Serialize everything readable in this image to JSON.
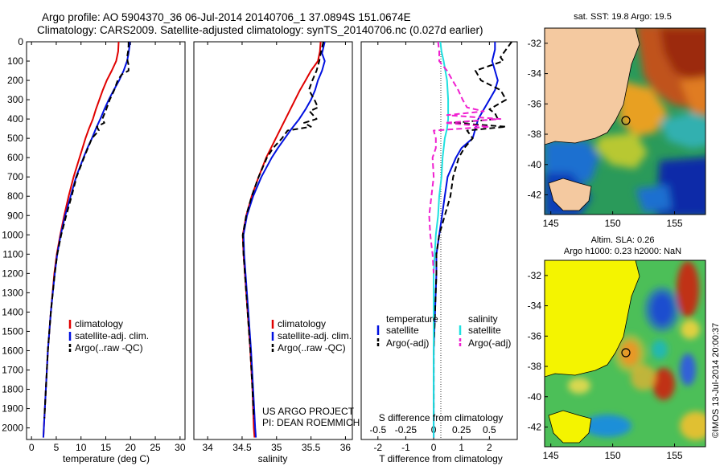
{
  "titles": {
    "line1": "Argo profile: AO 5904370_36 06-Jul-2014 20140706_1 37.0894S 151.0674E",
    "line2": "Climatology: CARS2009. Satellite-adjusted climatology: synTS_20140706.nc (0.027d earlier)"
  },
  "colors": {
    "climatology": "#e00000",
    "satellite": "#0010e0",
    "argo": "#000000",
    "salinity_satellite": "#20e0e0",
    "salinity_argo": "#f020d0",
    "land": "#f4c9a0"
  },
  "depth_axis": {
    "ticks": [
      0,
      100,
      200,
      300,
      400,
      500,
      600,
      700,
      800,
      900,
      1000,
      1100,
      1200,
      1300,
      1400,
      1500,
      1600,
      1700,
      1800,
      1900,
      2000
    ],
    "range": [
      0,
      2060
    ]
  },
  "chart_data": [
    {
      "type": "line",
      "panel": "temperature",
      "xlabel": "temperature (deg C)",
      "xlim": [
        -1,
        31
      ],
      "xticks": [
        0,
        5,
        10,
        15,
        20,
        25,
        30
      ],
      "legend": [
        "climatology",
        "satellite-adj. clim.",
        "Argo(..raw -QC)"
      ],
      "legend_position": "lower-center",
      "series": [
        {
          "name": "climatology",
          "color_key": "climatology",
          "style": "solid",
          "depth": [
            0,
            50,
            100,
            150,
            200,
            250,
            300,
            350,
            400,
            450,
            500,
            550,
            600,
            700,
            800,
            900,
            1000,
            1100,
            1200,
            1400,
            1600,
            1800,
            2000,
            2050
          ],
          "values": [
            17.6,
            17.5,
            17.1,
            16.2,
            15.2,
            14.4,
            13.7,
            13.0,
            12.4,
            11.6,
            10.9,
            10.3,
            9.7,
            8.5,
            7.5,
            6.6,
            5.8,
            5.1,
            4.6,
            3.9,
            3.3,
            2.9,
            2.5,
            2.4
          ]
        },
        {
          "name": "satellite-adj. clim.",
          "color_key": "satellite",
          "style": "solid",
          "depth": [
            0,
            20,
            60,
            100,
            150,
            200,
            250,
            300,
            350,
            400,
            450,
            500,
            550,
            600,
            700,
            800,
            900,
            1000,
            1100,
            1200,
            1400,
            1600,
            1800,
            2000,
            2050
          ],
          "values": [
            19.8,
            19.8,
            19.6,
            19.3,
            18.6,
            17.7,
            16.6,
            15.6,
            14.7,
            13.9,
            13.0,
            12.2,
            11.3,
            10.5,
            9.0,
            7.9,
            6.8,
            5.9,
            5.2,
            4.7,
            3.9,
            3.3,
            2.9,
            2.5,
            2.4
          ]
        },
        {
          "name": "Argo(..raw -QC)",
          "color_key": "argo",
          "style": "dashed",
          "depth": [
            0,
            20,
            50,
            80,
            100,
            120,
            150,
            170,
            200,
            250,
            300,
            350,
            400,
            420,
            440,
            460,
            500,
            550,
            600,
            700,
            800,
            900,
            1000,
            1100,
            1200,
            1400,
            1600,
            1800,
            1950
          ],
          "values": [
            19.6,
            19.6,
            19.5,
            19.3,
            19.4,
            19.6,
            19.6,
            18.2,
            17.4,
            16.7,
            15.8,
            15.1,
            14.3,
            14.7,
            13.2,
            13.6,
            12.2,
            11.4,
            10.6,
            9.1,
            8.1,
            7.0,
            6.0,
            5.2,
            4.7,
            3.9,
            3.3,
            2.9,
            2.6
          ]
        }
      ]
    },
    {
      "type": "line",
      "panel": "salinity",
      "xlabel": "salinity",
      "xlim": [
        33.8,
        36.1
      ],
      "xticks": [
        34,
        34.5,
        35,
        35.5,
        36
      ],
      "legend": [
        "climatology",
        "satellite-adj. clim.",
        "Argo(..raw -QC)"
      ],
      "legend_position": "lower-center",
      "series": [
        {
          "name": "climatology",
          "color_key": "climatology",
          "style": "solid",
          "depth": [
            0,
            50,
            100,
            150,
            200,
            250,
            300,
            350,
            400,
            450,
            500,
            550,
            600,
            700,
            800,
            900,
            1000,
            1100,
            1200,
            1400,
            1600,
            1800,
            2000,
            2050
          ],
          "values": [
            35.64,
            35.63,
            35.6,
            35.5,
            35.42,
            35.34,
            35.27,
            35.2,
            35.13,
            35.06,
            34.99,
            34.92,
            34.85,
            34.74,
            34.64,
            34.56,
            34.51,
            34.52,
            34.54,
            34.58,
            34.62,
            34.65,
            34.67,
            34.68
          ]
        },
        {
          "name": "satellite-adj. clim.",
          "color_key": "satellite",
          "style": "solid",
          "depth": [
            0,
            30,
            60,
            100,
            150,
            200,
            250,
            300,
            350,
            400,
            450,
            500,
            550,
            600,
            700,
            800,
            900,
            1000,
            1100,
            1200,
            1400,
            1600,
            1800,
            2000,
            2050
          ],
          "values": [
            35.7,
            35.68,
            35.66,
            35.7,
            35.66,
            35.6,
            35.56,
            35.5,
            35.42,
            35.33,
            35.22,
            35.12,
            35.02,
            34.93,
            34.78,
            34.66,
            34.57,
            34.52,
            34.53,
            34.55,
            34.59,
            34.63,
            34.66,
            34.69,
            34.7
          ]
        },
        {
          "name": "Argo(..raw -QC)",
          "color_key": "argo",
          "style": "dashed",
          "depth": [
            0,
            30,
            60,
            100,
            150,
            200,
            250,
            300,
            340,
            360,
            400,
            420,
            440,
            460,
            500,
            550,
            600,
            700,
            800,
            900,
            1000,
            1100,
            1200,
            1400,
            1600,
            1800,
            1950
          ],
          "values": [
            35.68,
            35.66,
            35.64,
            35.62,
            35.58,
            35.52,
            35.47,
            35.55,
            35.6,
            35.48,
            35.58,
            35.4,
            35.5,
            35.16,
            35.08,
            34.95,
            34.86,
            34.74,
            34.64,
            34.56,
            34.51,
            34.52,
            34.54,
            34.58,
            34.62,
            34.65,
            34.67
          ]
        }
      ]
    },
    {
      "type": "line",
      "panel": "difference",
      "xlabel": "T difference from climatology",
      "xlabel_top": "S difference from climatology",
      "xlim": [
        -2.6,
        3.0
      ],
      "xticks": [
        -2,
        -1,
        0,
        1,
        2
      ],
      "xticks_salinity": [
        -0.5,
        -0.25,
        0,
        0.25,
        0.5
      ],
      "legend_temperature": {
        "title": "temperature",
        "items": [
          "satellite",
          "Argo(-adj)"
        ]
      },
      "legend_salinity": {
        "title": "salinity",
        "items": [
          "satellite",
          "Argo(-adj)"
        ]
      },
      "series": [
        {
          "name": "temperature satellite",
          "color_key": "satellite",
          "style": "solid",
          "depth": [
            0,
            40,
            100,
            150,
            200,
            250,
            300,
            350,
            400,
            450,
            500,
            550,
            600,
            700,
            800,
            900,
            1000,
            1100,
            1200,
            1400,
            1600,
            1800,
            2000,
            2050
          ],
          "values": [
            2.2,
            2.2,
            2.1,
            2.2,
            2.3,
            2.2,
            2.0,
            1.8,
            1.6,
            1.5,
            1.4,
            1.0,
            0.8,
            0.5,
            0.4,
            0.3,
            0.2,
            0.1,
            0.1,
            0.05,
            0.0,
            0.0,
            0.0,
            0.0
          ]
        },
        {
          "name": "temperature Argo(-adj)",
          "color_key": "argo",
          "style": "dashed",
          "depth": [
            0,
            40,
            80,
            100,
            150,
            200,
            250,
            300,
            350,
            370,
            400,
            420,
            440,
            460,
            500,
            550,
            600,
            700,
            800,
            900,
            1000,
            1100,
            1200,
            1400,
            1600,
            1800,
            1950
          ],
          "values": [
            2.8,
            2.6,
            2.4,
            2.5,
            1.5,
            1.7,
            2.4,
            2.6,
            2.0,
            2.2,
            2.3,
            0.7,
            2.6,
            1.2,
            1.4,
            1.1,
            0.9,
            0.7,
            0.6,
            0.4,
            0.2,
            0.1,
            0.1,
            0.05,
            0.0,
            0.0,
            0.0
          ]
        },
        {
          "name": "salinity satellite",
          "color_key": "salinity_satellite",
          "style": "solid",
          "depth": [
            0,
            50,
            100,
            200,
            300,
            400,
            450,
            500,
            600,
            700,
            800,
            900,
            1000,
            1200,
            1400,
            1600,
            1800,
            2000,
            2050
          ],
          "values": [
            0.06,
            0.07,
            0.09,
            0.12,
            0.13,
            0.13,
            0.12,
            0.1,
            0.08,
            0.07,
            0.05,
            0.04,
            0.02,
            0.0,
            0.0,
            0.0,
            0.0,
            0.0,
            0.0
          ]
        },
        {
          "name": "salinity Argo(-adj)",
          "color_key": "salinity_argo",
          "style": "dashed",
          "depth": [
            0,
            50,
            100,
            150,
            200,
            250,
            300,
            340,
            360,
            380,
            400,
            420,
            440,
            460,
            500,
            550,
            600,
            700,
            800,
            900,
            1000,
            1100,
            1200
          ],
          "values": [
            0.04,
            0.05,
            0.05,
            0.12,
            0.17,
            0.22,
            0.26,
            0.3,
            0.45,
            0.12,
            0.6,
            0.1,
            0.5,
            0.0,
            0.02,
            0.02,
            -0.01,
            0.0,
            -0.02,
            -0.04,
            -0.03,
            -0.01,
            0.0
          ]
        }
      ]
    }
  ],
  "credits": {
    "line1": "US ARGO PROJECT",
    "line2": "PI: DEAN ROEMMICH"
  },
  "maps": {
    "sst": {
      "title": "sat. SST: 19.8 Argo: 19.5"
    },
    "sla": {
      "title1": "Altim. SLA: 0.26",
      "title2": "Argo h1000: 0.23 h2000: NaN"
    },
    "lat_ticks": [
      -32,
      -34,
      -36,
      -38,
      -40,
      -42
    ],
    "lon_ticks": [
      145,
      150,
      155
    ],
    "float_position": {
      "lat": -37.0894,
      "lon": 151.0674
    }
  },
  "watermark": "©IMOS 13-Jul-2014 20:00:37"
}
